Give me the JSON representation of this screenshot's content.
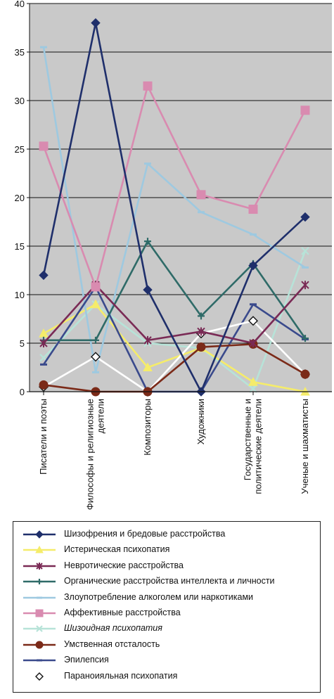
{
  "chart_data": {
    "type": "line",
    "categories": [
      "Писатели и поэты",
      "Философы и религиозные деятели",
      "Композиторы",
      "Художники",
      "Государственные и политические деятели",
      "Ученые и шахматисты"
    ],
    "ylim": [
      0,
      40
    ],
    "yticks": [
      0,
      5,
      10,
      15,
      20,
      25,
      30,
      35,
      40
    ],
    "grid": true,
    "legend_position": "bottom",
    "series": [
      {
        "name": "Шизофрения и бредовые расстройства",
        "values": [
          12,
          38,
          10.5,
          0,
          13,
          18
        ],
        "color": "#1f2f6b",
        "marker": "diamond"
      },
      {
        "name": "Истерическая психопатия",
        "values": [
          6,
          9,
          2.5,
          4.5,
          1,
          0
        ],
        "color": "#f5ec6a",
        "marker": "triangle"
      },
      {
        "name": "Невротические расстройства",
        "values": [
          5,
          11,
          5.3,
          6.2,
          5,
          11
        ],
        "color": "#7a2a55",
        "marker": "star"
      },
      {
        "name": "Органические расстройства интеллекта и личности",
        "values": [
          5.3,
          5.3,
          15.5,
          7.8,
          13.2,
          5.5
        ],
        "color": "#2f6b68",
        "marker": "plus"
      },
      {
        "name": "Злоупотребление алкоголем или наркотиками",
        "values": [
          35.5,
          2,
          23.5,
          18.5,
          16.2,
          12.8
        ],
        "color": "#9ec9e0",
        "marker": "dash"
      },
      {
        "name": "Аффективные расстройства",
        "values": [
          25.3,
          10.8,
          31.5,
          20.3,
          18.8,
          29
        ],
        "color": "#d98bb0",
        "marker": "square"
      },
      {
        "name": "Шизоидная психопатия",
        "values": [
          3.5,
          9,
          5,
          4.5,
          0.3,
          14.5
        ],
        "color": "#b7e3d8",
        "marker": "x"
      },
      {
        "name": "Умственная отсталость",
        "values": [
          0.7,
          0,
          0,
          4.6,
          4.9,
          1.8
        ],
        "color": "#7b2a18",
        "marker": "circle"
      },
      {
        "name": "Эпилепсия",
        "values": [
          2.8,
          10.8,
          0,
          0,
          9,
          5.4
        ],
        "color": "#3a4a8c",
        "marker": "dash"
      },
      {
        "name": "Параноияльная психопатия",
        "values": [
          0.5,
          3.6,
          0,
          6,
          7.3,
          1.8
        ],
        "color": "#ffffff",
        "marker": "hollow-diamond"
      }
    ]
  }
}
